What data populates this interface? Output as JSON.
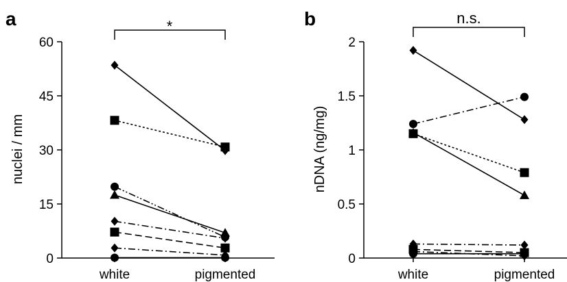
{
  "chart_data": [
    {
      "type": "line",
      "panel_letter": "a",
      "categories": [
        "white",
        "pigmented"
      ],
      "ylabel": "nuclei / mm",
      "xlabel": "",
      "ylim": [
        0,
        60
      ],
      "yticks": [
        "0",
        "15",
        "30",
        "45",
        "60"
      ],
      "yticks_values": [
        0,
        15,
        30,
        45,
        60
      ],
      "significance": "*",
      "series": [
        {
          "marker": "diamond",
          "dash": "solid",
          "values": [
            53.5,
            29.8
          ]
        },
        {
          "marker": "square",
          "dash": "dotted",
          "values": [
            38.2,
            30.8
          ]
        },
        {
          "marker": "circle",
          "dash": "dashdotdot",
          "values": [
            19.8,
            5.8
          ]
        },
        {
          "marker": "triangle",
          "dash": "solid",
          "values": [
            17.5,
            7.0
          ]
        },
        {
          "marker": "diamond",
          "dash": "dashdot",
          "values": [
            10.2,
            5.5
          ]
        },
        {
          "marker": "square",
          "dash": "dashed",
          "values": [
            7.2,
            2.8
          ]
        },
        {
          "marker": "diamond",
          "dash": "dashdot",
          "values": [
            2.8,
            0.8
          ]
        },
        {
          "marker": "circle",
          "dash": "solid",
          "values": [
            0.1,
            0.1
          ]
        }
      ]
    },
    {
      "type": "line",
      "panel_letter": "b",
      "categories": [
        "white",
        "pigmented"
      ],
      "ylabel": "nDNA (ng/mg)",
      "xlabel": "",
      "ylim": [
        0,
        2
      ],
      "yticks": [
        "0",
        "0.5",
        "1",
        "1.5",
        "2"
      ],
      "yticks_values": [
        0,
        0.5,
        1,
        1.5,
        2
      ],
      "significance": "n.s.",
      "series": [
        {
          "marker": "diamond",
          "dash": "solid",
          "values": [
            1.92,
            1.28
          ]
        },
        {
          "marker": "circle",
          "dash": "dashdot",
          "values": [
            1.24,
            1.49
          ]
        },
        {
          "marker": "square",
          "dash": "dotted",
          "values": [
            1.15,
            0.79
          ]
        },
        {
          "marker": "triangle",
          "dash": "solid",
          "values": [
            1.16,
            0.58
          ]
        },
        {
          "marker": "diamond",
          "dash": "dashdot",
          "values": [
            0.13,
            0.12
          ]
        },
        {
          "marker": "square",
          "dash": "dashed",
          "values": [
            0.08,
            0.05
          ]
        },
        {
          "marker": "diamond",
          "dash": "dashdot",
          "values": [
            0.06,
            0.02
          ]
        },
        {
          "marker": "circle",
          "dash": "solid",
          "values": [
            0.04,
            0.04
          ]
        }
      ]
    }
  ]
}
